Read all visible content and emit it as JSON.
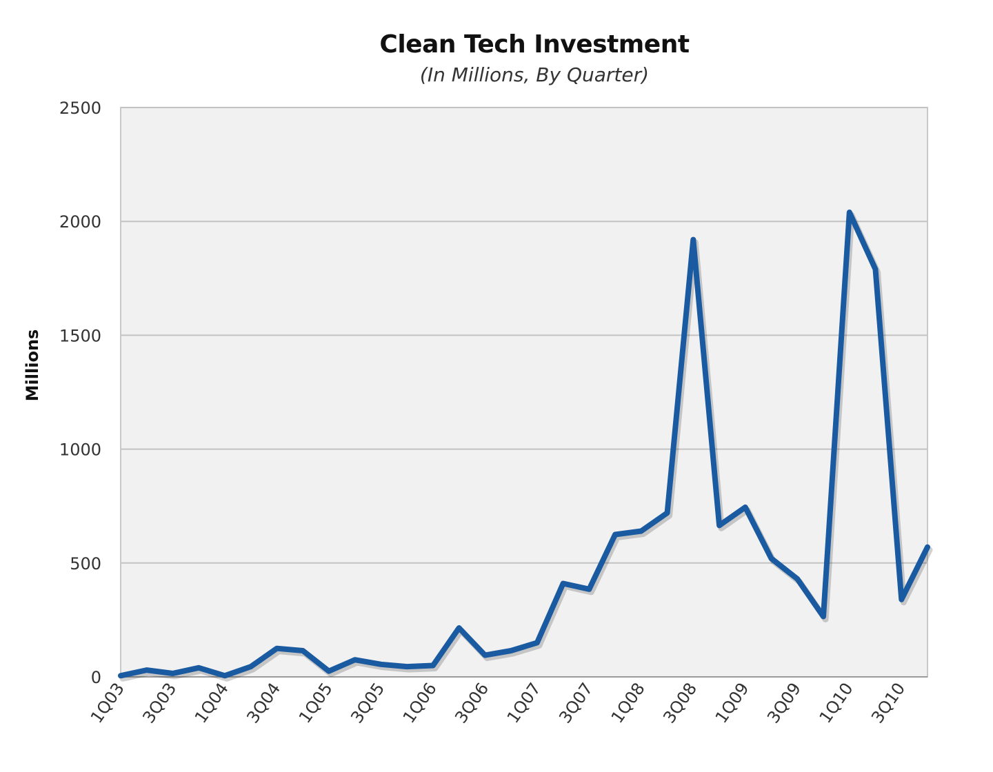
{
  "chart_data": {
    "type": "line",
    "title": "Clean Tech Investment",
    "subtitle": "(In Millions, By Quarter)",
    "xlabel": "",
    "ylabel": "Millions",
    "ylim": [
      0,
      2500
    ],
    "yticks": [
      0,
      500,
      1000,
      1500,
      2000,
      2500
    ],
    "grid": true,
    "legend": "none",
    "line_color": "#1a5aa0",
    "plot_background": "#f1f1f1",
    "x": [
      "1Q03",
      "2Q03",
      "3Q03",
      "4Q03",
      "1Q04",
      "2Q04",
      "3Q04",
      "4Q04",
      "1Q05",
      "2Q05",
      "3Q05",
      "4Q05",
      "1Q06",
      "2Q06",
      "3Q06",
      "4Q06",
      "1Q07",
      "2Q07",
      "3Q07",
      "4Q07",
      "1Q08",
      "2Q08",
      "3Q08",
      "4Q08",
      "1Q09",
      "2Q09",
      "3Q09",
      "4Q09",
      "1Q10",
      "2Q10",
      "3Q10",
      "4Q10"
    ],
    "xtick_labels": [
      "1Q03",
      "3Q03",
      "1Q04",
      "3Q04",
      "1Q05",
      "3Q05",
      "1Q06",
      "3Q06",
      "1Q07",
      "3Q07",
      "1Q08",
      "3Q08",
      "1Q09",
      "3Q09",
      "1Q10",
      "3Q10"
    ],
    "series": [
      {
        "values": [
          5,
          30,
          15,
          40,
          5,
          45,
          125,
          115,
          25,
          75,
          55,
          45,
          50,
          215,
          95,
          115,
          150,
          410,
          385,
          625,
          640,
          720,
          1920,
          665,
          745,
          520,
          430,
          265,
          2040,
          1790,
          340,
          570
        ]
      }
    ]
  }
}
